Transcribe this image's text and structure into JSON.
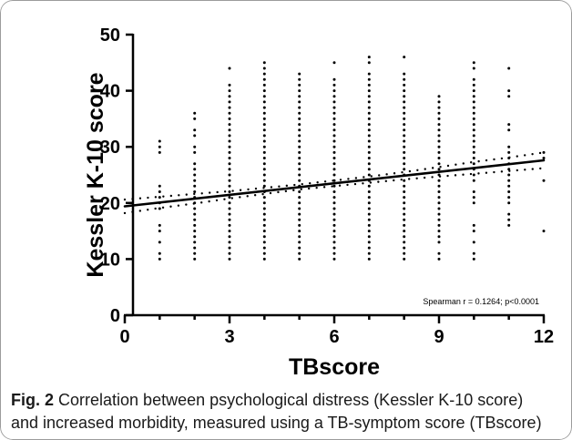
{
  "chart_data": {
    "type": "scatter",
    "xlabel": "TBscore",
    "ylabel": "Kessler K-10 score",
    "xlim": [
      0,
      12
    ],
    "ylim": [
      0,
      50
    ],
    "x_ticks": [
      0,
      3,
      6,
      9,
      12
    ],
    "y_ticks": [
      0,
      10,
      20,
      30,
      40,
      50
    ],
    "grid": false,
    "annotation": "Spearman r = 0.1264; p<0.0001",
    "points": [
      {
        "x": 1,
        "y": [
          10,
          11,
          13,
          15,
          16,
          19,
          20,
          21,
          22,
          23,
          29,
          30,
          31
        ]
      },
      {
        "x": 2,
        "y": [
          10,
          11,
          12,
          13,
          14,
          15,
          16,
          17,
          18,
          19,
          20,
          21,
          22,
          23,
          24,
          25,
          26,
          27,
          29,
          30,
          32,
          33,
          35,
          36
        ]
      },
      {
        "x": 3,
        "y": [
          10,
          11,
          12,
          13,
          14,
          15,
          16,
          17,
          18,
          19,
          20,
          21,
          22,
          23,
          24,
          25,
          26,
          27,
          28,
          29,
          30,
          31,
          32,
          33,
          34,
          35,
          36,
          37,
          38,
          39,
          40,
          41,
          44
        ]
      },
      {
        "x": 4,
        "y": [
          10,
          11,
          12,
          13,
          14,
          15,
          16,
          17,
          18,
          19,
          20,
          21,
          22,
          23,
          24,
          25,
          26,
          27,
          28,
          29,
          30,
          31,
          32,
          33,
          34,
          35,
          36,
          37,
          38,
          39,
          40,
          41,
          42,
          43,
          44,
          45
        ]
      },
      {
        "x": 5,
        "y": [
          10,
          11,
          12,
          13,
          14,
          15,
          16,
          17,
          18,
          19,
          20,
          21,
          22,
          23,
          24,
          25,
          26,
          27,
          28,
          29,
          30,
          31,
          32,
          33,
          34,
          35,
          36,
          37,
          38,
          39,
          40,
          41,
          42,
          43
        ]
      },
      {
        "x": 6,
        "y": [
          10,
          11,
          12,
          13,
          14,
          15,
          16,
          17,
          18,
          19,
          20,
          21,
          22,
          23,
          24,
          25,
          26,
          27,
          28,
          29,
          30,
          31,
          32,
          33,
          34,
          35,
          36,
          37,
          38,
          39,
          40,
          41,
          42,
          45
        ]
      },
      {
        "x": 7,
        "y": [
          10,
          11,
          12,
          13,
          14,
          15,
          16,
          17,
          18,
          19,
          20,
          21,
          22,
          23,
          24,
          25,
          26,
          27,
          28,
          29,
          30,
          31,
          32,
          33,
          34,
          35,
          36,
          37,
          38,
          39,
          40,
          41,
          42,
          43,
          45,
          46
        ]
      },
      {
        "x": 8,
        "y": [
          10,
          11,
          12,
          13,
          14,
          15,
          16,
          17,
          18,
          19,
          20,
          21,
          22,
          23,
          24,
          25,
          26,
          27,
          28,
          29,
          30,
          31,
          32,
          33,
          34,
          35,
          36,
          37,
          38,
          39,
          40,
          41,
          42,
          43,
          46
        ]
      },
      {
        "x": 9,
        "y": [
          10,
          11,
          13,
          14,
          15,
          16,
          17,
          18,
          19,
          20,
          21,
          22,
          23,
          24,
          25,
          26,
          27,
          28,
          29,
          30,
          31,
          32,
          33,
          34,
          35,
          36,
          37,
          38,
          39
        ]
      },
      {
        "x": 10,
        "y": [
          10,
          11,
          13,
          15,
          16,
          20,
          21,
          22,
          24,
          25,
          26,
          27,
          28,
          29,
          30,
          31,
          32,
          33,
          34,
          35,
          36,
          37,
          38,
          39,
          40,
          41,
          42,
          44,
          45
        ]
      },
      {
        "x": 11,
        "y": [
          16,
          17,
          18,
          20,
          21,
          22,
          23,
          24,
          25,
          26,
          27,
          28,
          29,
          30,
          33,
          34,
          39,
          40,
          44
        ]
      },
      {
        "x": 12,
        "y": [
          15,
          24,
          28,
          29
        ]
      }
    ],
    "regression_line": {
      "x": [
        0,
        12
      ],
      "y": [
        19.4,
        27.6
      ]
    },
    "confidence_band": {
      "x": [
        0,
        1,
        2,
        3,
        4,
        5,
        6,
        7,
        8,
        9,
        10,
        11,
        12
      ],
      "upper": [
        20.6,
        21.1,
        21.6,
        22.1,
        22.7,
        23.3,
        24.0,
        24.7,
        25.5,
        26.4,
        27.3,
        28.1,
        29.0
      ],
      "lower": [
        18.2,
        19.1,
        19.9,
        20.8,
        21.6,
        22.4,
        23.0,
        23.6,
        24.2,
        24.7,
        25.2,
        25.7,
        26.2
      ]
    }
  },
  "caption": {
    "label": "Fig. 2",
    "lines": [
      "Correlation between psychological distress (Kessler K-10 score)",
      "and increased morbidity, measured using a TB-symptom score (TBscore)"
    ]
  },
  "colors": {
    "ink": "#000000",
    "frame_border": "#9c9c9c",
    "caption_text": "#1a1a1a"
  }
}
